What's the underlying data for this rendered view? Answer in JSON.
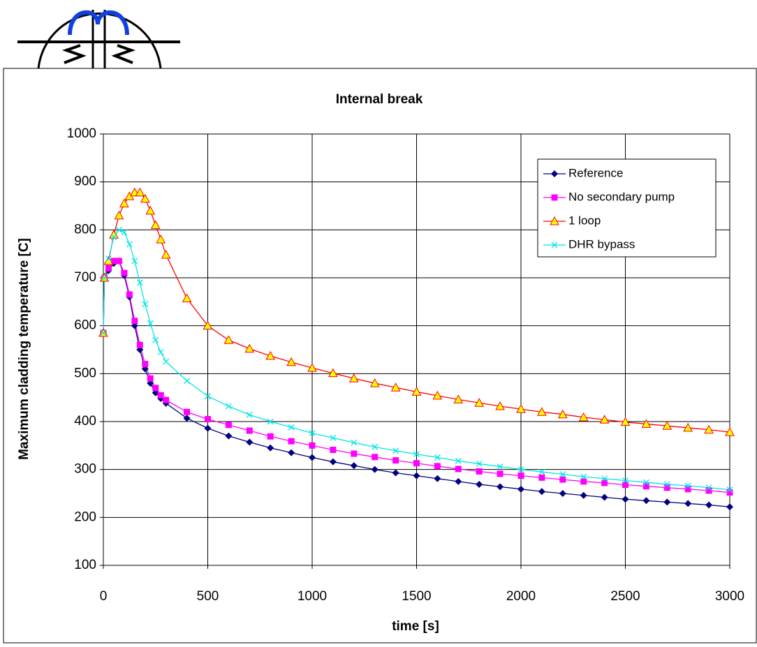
{
  "chart_data": {
    "type": "line",
    "title": "Internal break",
    "xlabel": "time [s]",
    "ylabel": "Maximum cladding temperature [C]",
    "x": [
      0,
      5,
      25,
      50,
      75,
      100,
      125,
      150,
      175,
      200,
      225,
      250,
      275,
      300,
      400,
      500,
      600,
      700,
      800,
      900,
      1000,
      1100,
      1200,
      1300,
      1400,
      1500,
      1600,
      1700,
      1800,
      1900,
      2000,
      2100,
      2200,
      2300,
      2400,
      2500,
      2600,
      2700,
      2800,
      2900,
      3000
    ],
    "series": [
      {
        "name": "Reference",
        "color": "#000080",
        "marker": "diamond",
        "values": [
          585,
          700,
          715,
          730,
          735,
          705,
          660,
          600,
          550,
          510,
          480,
          460,
          448,
          438,
          407,
          386,
          370,
          357,
          345,
          335,
          325,
          316,
          308,
          300,
          293,
          287,
          281,
          275,
          269,
          264,
          259,
          254,
          250,
          246,
          242,
          238,
          235,
          232,
          229,
          226,
          222
        ]
      },
      {
        "name": "No secondary pump",
        "color": "#ff00ff",
        "marker": "square",
        "values": [
          585,
          700,
          720,
          735,
          735,
          710,
          665,
          610,
          560,
          520,
          490,
          470,
          455,
          445,
          420,
          405,
          393,
          381,
          369,
          359,
          350,
          341,
          333,
          326,
          319,
          313,
          307,
          301,
          296,
          291,
          287,
          283,
          279,
          275,
          272,
          268,
          265,
          262,
          259,
          256,
          252
        ]
      },
      {
        "name": "1 loop",
        "color": "#ff0000",
        "marker": "triangle",
        "marker_fill": "#ffff00",
        "values": [
          585,
          700,
          735,
          790,
          830,
          855,
          870,
          878,
          878,
          865,
          840,
          810,
          780,
          748,
          657,
          600,
          570,
          552,
          537,
          524,
          512,
          501,
          490,
          480,
          471,
          462,
          454,
          446,
          439,
          432,
          426,
          420,
          415,
          409,
          404,
          399,
          395,
          391,
          387,
          383,
          378
        ]
      },
      {
        "name": "DHR bypass",
        "color": "#00e5e5",
        "marker": "x",
        "values": [
          585,
          700,
          740,
          785,
          800,
          795,
          770,
          735,
          690,
          645,
          605,
          570,
          545,
          525,
          485,
          453,
          432,
          414,
          400,
          388,
          376,
          366,
          356,
          347,
          339,
          332,
          325,
          318,
          312,
          306,
          300,
          295,
          290,
          285,
          281,
          277,
          273,
          269,
          266,
          262,
          258
        ]
      }
    ],
    "xlim": [
      0,
      3000
    ],
    "xticks": [
      0,
      500,
      1000,
      1500,
      2000,
      2500,
      3000
    ],
    "ylim": [
      100,
      1000
    ],
    "yticks": [
      100,
      200,
      300,
      400,
      500,
      600,
      700,
      800,
      900,
      1000
    ],
    "grid": true,
    "legend": "upper right"
  }
}
